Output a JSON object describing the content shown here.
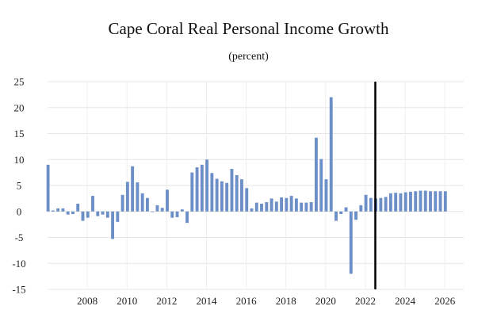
{
  "chart_data": {
    "type": "bar",
    "title": "Cape Coral Real Personal Income Growth",
    "subtitle": "(percent)",
    "xlabel": "",
    "ylabel": "",
    "ylim": [
      -15,
      25
    ],
    "yticks": [
      -15,
      -10,
      -5,
      0,
      5,
      10,
      15,
      20,
      25
    ],
    "xticks": [
      {
        "label": "2008",
        "x": 2008
      },
      {
        "label": "2010",
        "x": 2010
      },
      {
        "label": "2012",
        "x": 2012
      },
      {
        "label": "2014",
        "x": 2014
      },
      {
        "label": "2016",
        "x": 2016
      },
      {
        "label": "2018",
        "x": 2018
      },
      {
        "label": "2020",
        "x": 2020
      },
      {
        "label": "2022",
        "x": 2022
      },
      {
        "label": "2024",
        "x": 2024
      },
      {
        "label": "2026",
        "x": 2026
      }
    ],
    "x_start": 2006.0,
    "x_step": 0.25,
    "forecast_line_x": 2022.5,
    "color": "#6d8fc7",
    "values": [
      9.0,
      0.2,
      0.6,
      0.6,
      -0.6,
      -0.5,
      1.5,
      -1.8,
      -1.2,
      3.0,
      -0.9,
      -0.6,
      -1.2,
      -5.3,
      -2.0,
      3.2,
      5.7,
      8.7,
      5.6,
      3.5,
      2.6,
      0.0,
      1.2,
      0.7,
      4.2,
      -1.2,
      -1.1,
      0.4,
      -2.2,
      7.5,
      8.5,
      9.0,
      10.0,
      7.4,
      6.3,
      5.8,
      5.5,
      8.2,
      7.0,
      6.2,
      4.5,
      0.6,
      1.7,
      1.5,
      1.8,
      2.5,
      1.9,
      2.7,
      2.6,
      3.0,
      2.5,
      1.7,
      1.7,
      1.8,
      14.2,
      10.1,
      6.2,
      22.0,
      -1.8,
      -0.5,
      0.8,
      -12.0,
      -1.6,
      1.2,
      3.2,
      2.6,
      2.5,
      2.6,
      2.8,
      3.5,
      3.6,
      3.5,
      3.7,
      3.8,
      3.9,
      4.0,
      4.0,
      3.9,
      3.9,
      3.9,
      3.9
    ]
  }
}
